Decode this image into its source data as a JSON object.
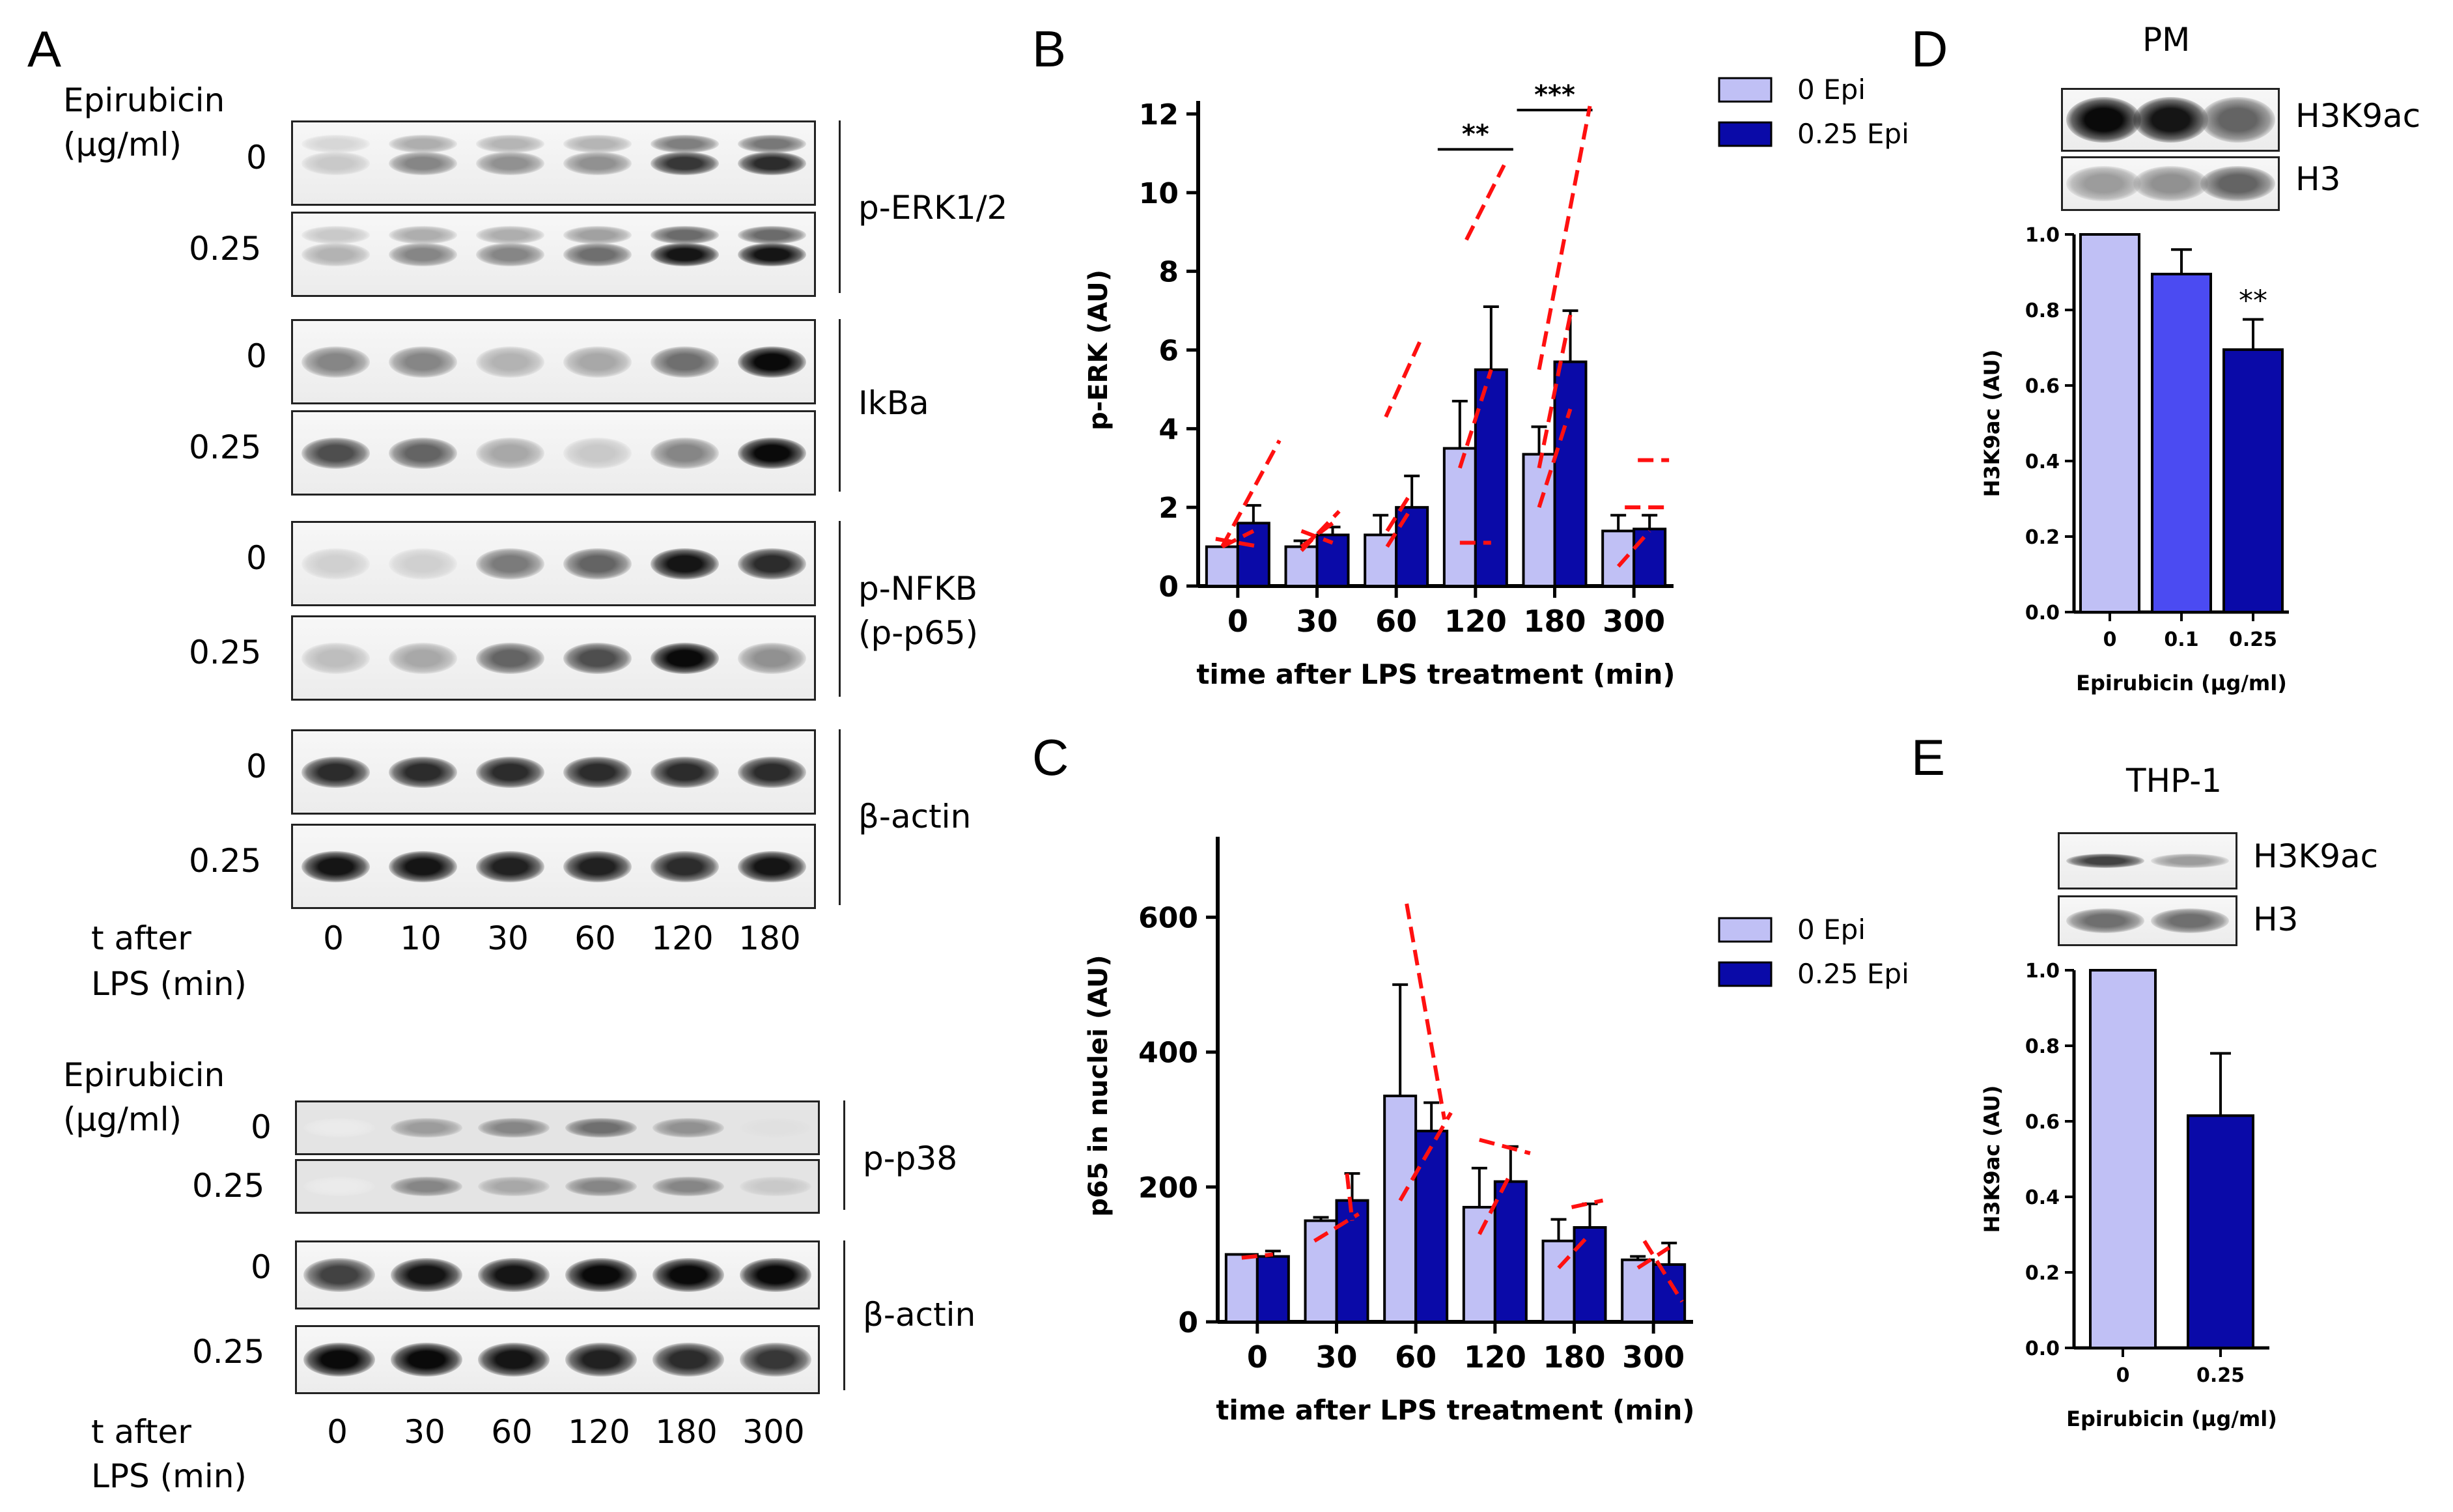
{
  "panels": {
    "A": {
      "label": "A",
      "top": {
        "treatment_title": "Epirubicin",
        "treatment_unit": "(µg/ml)",
        "doses": [
          "0",
          "0.25"
        ],
        "time_title": "t after",
        "time_unit": "LPS (min)",
        "timepoints": [
          "0",
          "10",
          "30",
          "60",
          "120",
          "180"
        ],
        "blots": [
          {
            "protein": "p-ERK1/2",
            "rows": [
              {
                "dose": "0",
                "intensity": [
                  0.15,
                  0.45,
                  0.4,
                  0.4,
                  0.8,
                  0.85
                ]
              },
              {
                "dose": "0.25",
                "intensity": [
                  0.25,
                  0.45,
                  0.45,
                  0.55,
                  0.95,
                  0.95
                ]
              }
            ]
          },
          {
            "protein": "IkBa",
            "rows": [
              {
                "dose": "0",
                "intensity": [
                  0.45,
                  0.45,
                  0.25,
                  0.3,
                  0.55,
                  1.0
                ]
              },
              {
                "dose": "0.25",
                "intensity": [
                  0.7,
                  0.6,
                  0.3,
                  0.15,
                  0.45,
                  1.0
                ]
              }
            ]
          },
          {
            "protein": "p-NFKB\n(p-p65)",
            "protein_line1": "p-NFKB",
            "protein_line2": "(p-p65)",
            "rows": [
              {
                "dose": "0",
                "intensity": [
                  0.12,
                  0.12,
                  0.5,
                  0.6,
                  0.95,
                  0.85
                ]
              },
              {
                "dose": "0.25",
                "intensity": [
                  0.2,
                  0.3,
                  0.6,
                  0.7,
                  1.0,
                  0.4
                ]
              }
            ]
          },
          {
            "protein": "β-actin",
            "rows": [
              {
                "dose": "0",
                "intensity": [
                  0.85,
                  0.85,
                  0.85,
                  0.85,
                  0.85,
                  0.85
                ]
              },
              {
                "dose": "0.25",
                "intensity": [
                  0.95,
                  0.95,
                  0.9,
                  0.9,
                  0.85,
                  0.95
                ]
              }
            ]
          }
        ]
      },
      "bottom": {
        "treatment_title": "Epirubicin",
        "treatment_unit": "(µg/ml)",
        "doses": [
          "0",
          "0.25"
        ],
        "time_title": "t after",
        "time_unit": "LPS (min)",
        "timepoints": [
          "0",
          "30",
          "60",
          "120",
          "180",
          "300"
        ],
        "blots": [
          {
            "protein": "p-p38",
            "rows": [
              {
                "dose": "0",
                "intensity": [
                  0.0,
                  0.35,
                  0.45,
                  0.55,
                  0.4,
                  0.05
                ]
              },
              {
                "dose": "0.25",
                "intensity": [
                  0.0,
                  0.45,
                  0.3,
                  0.45,
                  0.45,
                  0.15
                ]
              }
            ]
          },
          {
            "protein": "β-actin",
            "rows": [
              {
                "dose": "0",
                "intensity": [
                  0.75,
                  0.95,
                  0.95,
                  1.0,
                  1.0,
                  1.0
                ]
              },
              {
                "dose": "0.25",
                "intensity": [
                  1.0,
                  1.0,
                  0.95,
                  0.9,
                  0.85,
                  0.8
                ]
              }
            ]
          }
        ]
      }
    },
    "B": {
      "label": "B"
    },
    "C": {
      "label": "C"
    },
    "D": {
      "label": "D",
      "subtitle": "PM",
      "blots": [
        {
          "protein": "H3K9ac",
          "intensity": [
            1.0,
            0.95,
            0.6
          ]
        },
        {
          "protein": "H3",
          "intensity": [
            0.35,
            0.4,
            0.6
          ]
        }
      ]
    },
    "E": {
      "label": "E",
      "subtitle": "THP-1",
      "blots": [
        {
          "protein": "H3K9ac",
          "intensity": [
            0.75,
            0.35
          ]
        },
        {
          "protein": "H3",
          "intensity": [
            0.55,
            0.55
          ]
        }
      ]
    }
  },
  "colors": {
    "light_bar": "#c0c0f5",
    "dark_bar": "#0a0aa8",
    "mid_bar": "#4b4bf2",
    "overlay": "#ff1010"
  },
  "chart_data": [
    {
      "id": "B",
      "type": "bar",
      "xlabel": "time after LPS treatment (min)",
      "ylabel": "p-ERK (AU)",
      "ylim": [
        0,
        12
      ],
      "yticks": [
        "0",
        "2",
        "4",
        "6",
        "8",
        "10",
        "12"
      ],
      "categories": [
        "0",
        "30",
        "60",
        "120",
        "180",
        "300"
      ],
      "legend_position": "top-right",
      "series": [
        {
          "name": "0 Epi",
          "color": "#c0c0f5",
          "values": [
            1.0,
            1.0,
            1.3,
            3.5,
            3.35,
            1.4
          ],
          "errors": [
            0.0,
            0.15,
            0.5,
            1.2,
            0.7,
            0.4
          ]
        },
        {
          "name": "0.25 Epi",
          "color": "#0a0aa8",
          "values": [
            1.6,
            1.3,
            2.0,
            5.5,
            5.7,
            1.45
          ],
          "errors": [
            0.45,
            0.2,
            0.8,
            1.6,
            1.3,
            0.35
          ]
        }
      ],
      "significance": [
        {
          "category": "120",
          "text": "**"
        },
        {
          "category": "180",
          "text": "***"
        }
      ]
    },
    {
      "id": "C",
      "type": "bar",
      "xlabel": "time after LPS treatment (min)",
      "ylabel": "p65 in nuclei (AU)",
      "ylim": [
        0,
        700
      ],
      "yticks": [
        "0",
        "200",
        "400",
        "600"
      ],
      "categories": [
        "0",
        "30",
        "60",
        "120",
        "180",
        "300"
      ],
      "legend_position": "top-right",
      "series": [
        {
          "name": "0 Epi",
          "color": "#c0c0f5",
          "values": [
            100,
            150,
            335,
            170,
            120,
            92
          ],
          "errors": [
            0,
            5,
            165,
            58,
            32,
            5
          ]
        },
        {
          "name": "0.25 Epi",
          "color": "#0a0aa8",
          "values": [
            97,
            180,
            283,
            208,
            140,
            85
          ],
          "errors": [
            8,
            40,
            42,
            52,
            35,
            32
          ]
        }
      ]
    },
    {
      "id": "D",
      "type": "bar",
      "xlabel": "Epirubicin (µg/ml)",
      "ylabel": "H3K9ac (AU)",
      "ylim": [
        0,
        1.0
      ],
      "yticks": [
        "0.0",
        "0.2",
        "0.4",
        "0.6",
        "0.8",
        "1.0"
      ],
      "categories": [
        "0",
        "0.1",
        "0.25"
      ],
      "values": [
        1.0,
        0.895,
        0.695
      ],
      "errors": [
        0,
        0.065,
        0.08
      ],
      "bar_colors": [
        "#c0c0f5",
        "#4b4bf2",
        "#0a0aa8"
      ],
      "significance": [
        {
          "category": "0.25",
          "text": "**"
        }
      ]
    },
    {
      "id": "E",
      "type": "bar",
      "xlabel": "Epirubicin (µg/ml)",
      "ylabel": "H3K9ac (AU)",
      "ylim": [
        0,
        1.0
      ],
      "yticks": [
        "0.0",
        "0.2",
        "0.4",
        "0.6",
        "0.8",
        "1.0"
      ],
      "categories": [
        "0",
        "0.25"
      ],
      "values": [
        1.0,
        0.615
      ],
      "errors": [
        0,
        0.165
      ],
      "bar_colors": [
        "#c0c0f5",
        "#0a0aa8"
      ]
    }
  ]
}
